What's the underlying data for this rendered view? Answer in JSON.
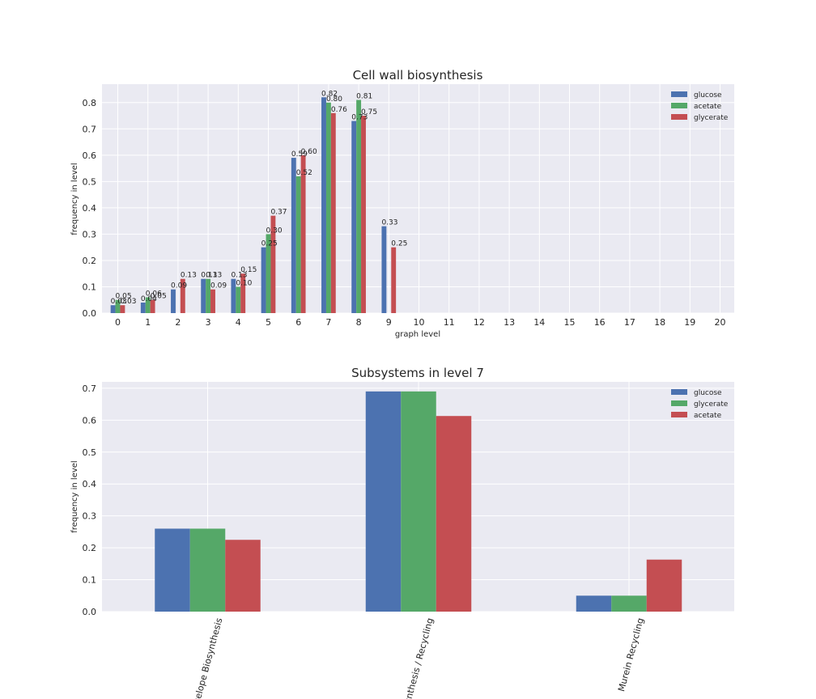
{
  "colors": {
    "glucose": "#4c72b0",
    "acetate": "#55a868",
    "glycerate": "#c44e52",
    "bg": "#eaeaf2",
    "grid": "#ffffff"
  },
  "chart_data": [
    {
      "type": "bar",
      "title": "Cell wall biosynthesis",
      "xlabel": "graph level",
      "ylabel": "frequency in level",
      "ylim": [
        0,
        0.87
      ],
      "yticks": [
        "0.0",
        "0.1",
        "0.2",
        "0.3",
        "0.4",
        "0.5",
        "0.6",
        "0.7",
        "0.8"
      ],
      "categories": [
        "0",
        "1",
        "2",
        "3",
        "4",
        "5",
        "6",
        "7",
        "8",
        "9",
        "10",
        "11",
        "12",
        "13",
        "14",
        "15",
        "16",
        "17",
        "18",
        "19",
        "20"
      ],
      "legend_position": "top-right",
      "series": [
        {
          "name": "glucose",
          "color": "#4c72b0",
          "values": [
            0.03,
            0.04,
            0.09,
            0.13,
            0.13,
            0.25,
            0.59,
            0.82,
            0.73,
            0.33,
            0,
            0,
            0,
            0,
            0,
            0,
            0,
            0,
            0,
            0,
            0
          ],
          "labels": [
            "0.03",
            "0.04",
            "0.09",
            "0.13",
            "0.13",
            "0.25",
            "0.59",
            "0.82",
            "0.73",
            "0.33",
            "",
            "",
            "",
            "",
            "",
            "",
            "",
            "",
            "",
            "",
            ""
          ]
        },
        {
          "name": "acetate",
          "color": "#55a868",
          "values": [
            0.05,
            0.06,
            0,
            0.13,
            0.1,
            0.3,
            0.52,
            0.8,
            0.81,
            0,
            0,
            0,
            0,
            0,
            0,
            0,
            0,
            0,
            0,
            0,
            0
          ],
          "labels": [
            "0.05",
            "0.06",
            "",
            "0.13",
            "0.10",
            "0.30",
            "0.52",
            "0.80",
            "0.81",
            "",
            "",
            "",
            "",
            "",
            "",
            "",
            "",
            "",
            "",
            "",
            ""
          ]
        },
        {
          "name": "glycerate",
          "color": "#c44e52",
          "values": [
            0.03,
            0.05,
            0.13,
            0.09,
            0.15,
            0.37,
            0.6,
            0.76,
            0.75,
            0.25,
            0,
            0,
            0,
            0,
            0,
            0,
            0,
            0,
            0,
            0,
            0
          ],
          "labels": [
            "0.03",
            "0.05",
            "0.13",
            "0.09",
            "0.15",
            "0.37",
            "0.60",
            "0.76",
            "0.75",
            "0.25",
            "",
            "",
            "",
            "",
            "",
            "",
            "",
            "",
            "",
            "",
            ""
          ]
        }
      ]
    },
    {
      "type": "bar",
      "title": "Subsystems in level 7",
      "xlabel": "",
      "ylabel": "frequency in level",
      "ylim": [
        0,
        0.72
      ],
      "yticks": [
        "0.0",
        "0.1",
        "0.2",
        "0.3",
        "0.4",
        "0.5",
        "0.6",
        "0.7"
      ],
      "categories": [
        "Cell Envelope Biosynthesis",
        "Murein Biosynthesis / Recycling",
        "Murein Recycling"
      ],
      "category_labels_visible": [
        "velope Biosynthesis",
        "ynthesis / Recycling",
        "Murein Recycling"
      ],
      "legend_position": "top-right",
      "series": [
        {
          "name": "glucose",
          "color": "#4c72b0",
          "values": [
            0.26,
            0.69,
            0.05
          ]
        },
        {
          "name": "glycerate",
          "color": "#55a868",
          "values": [
            0.26,
            0.69,
            0.05
          ]
        },
        {
          "name": "acetate",
          "color": "#c44e52",
          "values": [
            0.225,
            0.613,
            0.163
          ]
        }
      ]
    }
  ]
}
